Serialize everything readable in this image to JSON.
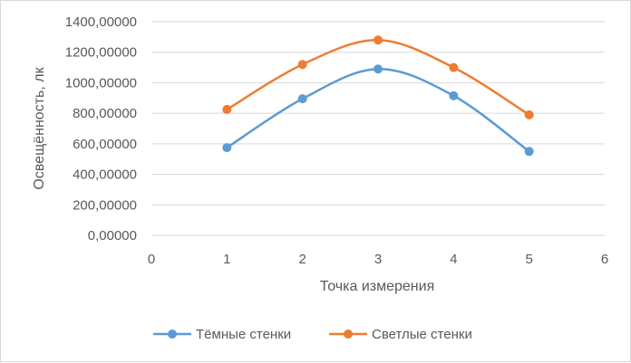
{
  "chart_data": {
    "type": "scatter",
    "xlabel": "Точка измерения",
    "ylabel": "Освещённость, лк",
    "xlim": [
      0,
      6
    ],
    "ylim": [
      0,
      1400
    ],
    "x_ticks": [
      "0",
      "1",
      "2",
      "3",
      "4",
      "5",
      "6"
    ],
    "y_ticks": [
      "0,00000",
      "200,00000",
      "400,00000",
      "600,00000",
      "800,00000",
      "1000,00000",
      "1200,00000",
      "1400,00000"
    ],
    "grid": "horizontal",
    "legend_position": "bottom",
    "series": [
      {
        "name": "Тёмные стенки",
        "color": "#5b9bd5",
        "x": [
          1,
          2,
          3,
          4,
          5
        ],
        "y": [
          575,
          895,
          1090,
          915,
          550
        ]
      },
      {
        "name": "Светлые стенки",
        "color": "#ed7d31",
        "x": [
          1,
          2,
          3,
          4,
          5
        ],
        "y": [
          825,
          1120,
          1280,
          1100,
          790
        ]
      }
    ]
  }
}
